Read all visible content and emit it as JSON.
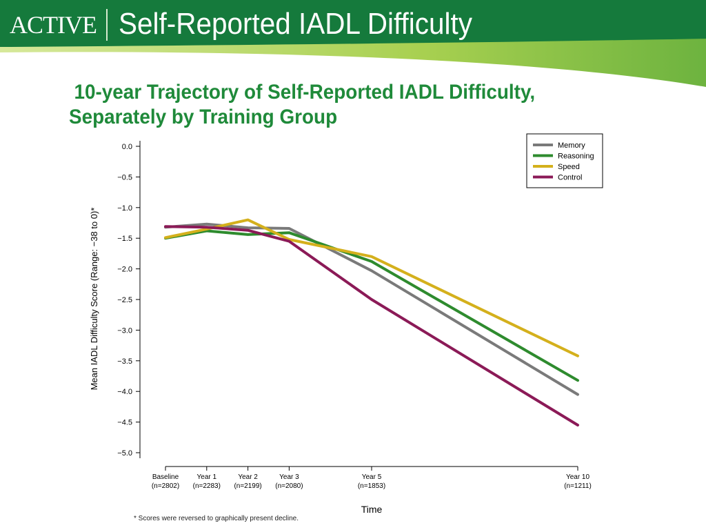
{
  "header": {
    "logo_text": "ACTIVE",
    "title": "Self-Reported IADL Difficulty",
    "colors": {
      "banner": "#157a3c",
      "accent_stripe": "#8cc63f"
    }
  },
  "chart_data": {
    "type": "line",
    "title_line1": "10-year Trajectory of Self-Reported IADL Difficulty,",
    "title_line2": "Separately by Training Group",
    "xlabel": "Time",
    "ylabel": "Mean IADL Difficulty Score (Range: −38 to 0)*",
    "x_values": [
      0,
      1,
      2,
      3,
      5,
      10
    ],
    "x_tick_labels": [
      [
        "Baseline",
        "(n=2802)"
      ],
      [
        "Year 1",
        "(n=2283)"
      ],
      [
        "Year 2",
        "(n=2199)"
      ],
      [
        "Year 3",
        "(n=2080)"
      ],
      [
        "Year 5",
        "(n=1853)"
      ],
      [
        "Year 10",
        "(n=1211)"
      ]
    ],
    "ylim": [
      -5.0,
      0.0
    ],
    "y_ticks": [
      0.0,
      -0.5,
      -1.0,
      -1.5,
      -2.0,
      -2.5,
      -3.0,
      -3.5,
      -4.0,
      -4.5,
      -5.0
    ],
    "y_tick_labels": [
      "0.0",
      "−0.5",
      "−1.0",
      "−1.5",
      "−2.0",
      "−2.5",
      "−3.0",
      "−3.5",
      "−4.0",
      "−4.5",
      "−5.0"
    ],
    "grid": false,
    "legend_position": "top-right",
    "series": [
      {
        "name": "Memory",
        "color": "#7a7a7a",
        "values": [
          -1.32,
          -1.27,
          -1.33,
          -1.34,
          -2.03,
          -4.05
        ]
      },
      {
        "name": "Reasoning",
        "color": "#2e8b2e",
        "values": [
          -1.5,
          -1.38,
          -1.44,
          -1.41,
          -1.88,
          -3.82
        ]
      },
      {
        "name": "Speed",
        "color": "#d4b01c",
        "values": [
          -1.49,
          -1.35,
          -1.2,
          -1.52,
          -1.8,
          -3.42
        ]
      },
      {
        "name": "Control",
        "color": "#8b1a57",
        "values": [
          -1.31,
          -1.32,
          -1.37,
          -1.55,
          -2.5,
          -4.55
        ]
      }
    ],
    "footnote": "* Scores were reversed to graphically present decline."
  }
}
